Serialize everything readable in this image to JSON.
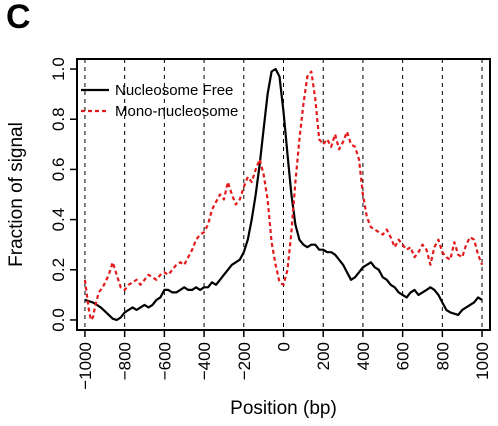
{
  "panel_label": "C",
  "chart_data": {
    "type": "line",
    "xlabel": "Position (bp)",
    "ylabel": "Fraction of signal",
    "xlim": [
      -1040,
      1040
    ],
    "ylim": [
      -0.04,
      1.04
    ],
    "x_ticks": [
      -1000,
      -800,
      -600,
      -400,
      -200,
      0,
      200,
      400,
      600,
      800,
      1000
    ],
    "x_tick_labels": [
      "−1000",
      "−800",
      "−600",
      "−400",
      "−200",
      "0",
      "200",
      "400",
      "600",
      "800",
      "1000"
    ],
    "y_ticks": [
      0.0,
      0.2,
      0.4,
      0.6,
      0.8,
      1.0
    ],
    "y_tick_labels": [
      "0.0",
      "0.2",
      "0.4",
      "0.6",
      "0.8",
      "1.0"
    ],
    "vertical_dashed_gridlines_at": [
      -1000,
      -800,
      -600,
      -400,
      -200,
      0,
      200,
      400,
      600,
      800,
      1000
    ],
    "legend_position": "top-left",
    "series": [
      {
        "name": "Nucleosome Free",
        "color": "#000000",
        "style": "solid",
        "x": [
          -1000,
          -960,
          -920,
          -880,
          -860,
          -840,
          -820,
          -800,
          -780,
          -760,
          -740,
          -720,
          -700,
          -680,
          -660,
          -640,
          -620,
          -600,
          -580,
          -560,
          -540,
          -520,
          -500,
          -480,
          -460,
          -440,
          -420,
          -400,
          -380,
          -360,
          -340,
          -320,
          -300,
          -280,
          -260,
          -240,
          -220,
          -200,
          -180,
          -160,
          -140,
          -120,
          -100,
          -80,
          -60,
          -40,
          -20,
          0,
          20,
          40,
          60,
          80,
          100,
          120,
          140,
          160,
          180,
          200,
          220,
          240,
          260,
          280,
          300,
          320,
          340,
          360,
          380,
          400,
          420,
          440,
          460,
          480,
          500,
          520,
          540,
          560,
          580,
          600,
          620,
          640,
          660,
          680,
          700,
          720,
          740,
          760,
          780,
          800,
          820,
          840,
          860,
          880,
          900,
          920,
          940,
          960,
          980,
          1000
        ],
        "y": [
          0.08,
          0.07,
          0.05,
          0.02,
          0.005,
          0.0,
          0.01,
          0.03,
          0.04,
          0.05,
          0.04,
          0.05,
          0.06,
          0.05,
          0.06,
          0.08,
          0.09,
          0.12,
          0.12,
          0.11,
          0.11,
          0.12,
          0.13,
          0.12,
          0.12,
          0.13,
          0.12,
          0.13,
          0.13,
          0.15,
          0.14,
          0.16,
          0.18,
          0.2,
          0.22,
          0.23,
          0.24,
          0.27,
          0.32,
          0.4,
          0.5,
          0.62,
          0.76,
          0.9,
          0.99,
          1.0,
          0.97,
          0.83,
          0.66,
          0.5,
          0.38,
          0.32,
          0.3,
          0.29,
          0.3,
          0.3,
          0.28,
          0.28,
          0.27,
          0.27,
          0.26,
          0.24,
          0.22,
          0.19,
          0.16,
          0.17,
          0.19,
          0.21,
          0.22,
          0.23,
          0.21,
          0.2,
          0.17,
          0.16,
          0.14,
          0.13,
          0.11,
          0.1,
          0.09,
          0.11,
          0.12,
          0.1,
          0.11,
          0.12,
          0.13,
          0.12,
          0.1,
          0.07,
          0.04,
          0.03,
          0.025,
          0.02,
          0.04,
          0.05,
          0.06,
          0.07,
          0.09,
          0.08
        ]
      },
      {
        "name": "Mono-nucleosome",
        "color": "#e31a1c",
        "style": "dashed",
        "x": [
          -1000,
          -990,
          -980,
          -970,
          -960,
          -950,
          -930,
          -910,
          -880,
          -860,
          -840,
          -820,
          -800,
          -780,
          -760,
          -740,
          -720,
          -700,
          -680,
          -660,
          -640,
          -620,
          -600,
          -580,
          -560,
          -540,
          -520,
          -500,
          -480,
          -460,
          -440,
          -420,
          -400,
          -380,
          -360,
          -340,
          -320,
          -300,
          -280,
          -260,
          -240,
          -220,
          -200,
          -180,
          -160,
          -140,
          -120,
          -100,
          -80,
          -60,
          -40,
          -20,
          0,
          20,
          40,
          60,
          80,
          100,
          120,
          140,
          160,
          180,
          200,
          220,
          240,
          260,
          280,
          300,
          320,
          340,
          360,
          380,
          400,
          420,
          440,
          460,
          480,
          500,
          520,
          540,
          560,
          580,
          600,
          620,
          640,
          660,
          680,
          700,
          720,
          740,
          760,
          780,
          800,
          820,
          840,
          860,
          880,
          900,
          920,
          940,
          960,
          980,
          1000
        ],
        "y": [
          0.16,
          0.1,
          0.04,
          0.0,
          0.01,
          0.05,
          0.11,
          0.13,
          0.18,
          0.23,
          0.18,
          0.13,
          0.12,
          0.14,
          0.15,
          0.16,
          0.14,
          0.16,
          0.18,
          0.17,
          0.16,
          0.18,
          0.19,
          0.18,
          0.2,
          0.22,
          0.23,
          0.22,
          0.25,
          0.28,
          0.32,
          0.34,
          0.35,
          0.38,
          0.44,
          0.47,
          0.5,
          0.48,
          0.55,
          0.5,
          0.46,
          0.48,
          0.53,
          0.57,
          0.55,
          0.6,
          0.64,
          0.58,
          0.48,
          0.31,
          0.22,
          0.15,
          0.14,
          0.2,
          0.35,
          0.55,
          0.72,
          0.86,
          0.97,
          0.99,
          0.88,
          0.72,
          0.7,
          0.72,
          0.69,
          0.74,
          0.68,
          0.71,
          0.75,
          0.7,
          0.69,
          0.64,
          0.5,
          0.41,
          0.37,
          0.36,
          0.35,
          0.34,
          0.36,
          0.33,
          0.29,
          0.32,
          0.3,
          0.28,
          0.29,
          0.25,
          0.27,
          0.3,
          0.28,
          0.22,
          0.29,
          0.32,
          0.27,
          0.25,
          0.24,
          0.31,
          0.26,
          0.25,
          0.3,
          0.33,
          0.32,
          0.26,
          0.22
        ]
      }
    ]
  }
}
